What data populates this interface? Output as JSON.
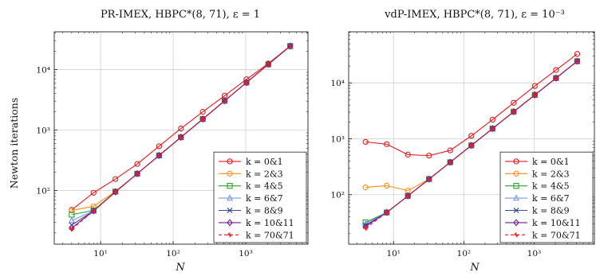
{
  "chart_data": [
    {
      "type": "line",
      "title": "PR-IMEX, HBPC*(8, 71), ε = 1",
      "xlabel": "N",
      "ylabel": "Newton iterations",
      "xscale": "log",
      "yscale": "log",
      "xlim": [
        2.3,
        7200
      ],
      "ylim": [
        13,
        42000
      ],
      "xticks": [
        10,
        100,
        1000
      ],
      "xtick_labels": [
        "10¹",
        "10²",
        "10³"
      ],
      "yticks": [
        100,
        1000,
        10000
      ],
      "ytick_labels": [
        "10²",
        "10³",
        "10⁴"
      ],
      "grid": true,
      "legend_position": "lower-right",
      "x": [
        4,
        8,
        16,
        32,
        64,
        128,
        256,
        512,
        1024,
        2048,
        4096
      ],
      "series": [
        {
          "name": "k = 0&1",
          "color": "#e41a1c",
          "marker": "circle",
          "dashed": false,
          "values": [
            48,
            92,
            155,
            275,
            540,
            1060,
            2000,
            3700,
            6900,
            12600,
            24500
          ]
        },
        {
          "name": "k = 2&3",
          "color": "#ff8c1a",
          "marker": "circle",
          "dashed": false,
          "values": [
            47,
            55,
            97,
            190,
            380,
            760,
            1520,
            3050,
            6100,
            12200,
            24400
          ]
        },
        {
          "name": "k = 4&5",
          "color": "#2ca02c",
          "marker": "square",
          "dashed": false,
          "values": [
            40,
            47,
            96,
            190,
            380,
            760,
            1520,
            3050,
            6100,
            12200,
            24400
          ]
        },
        {
          "name": "k = 6&7",
          "color": "#7b96e8",
          "marker": "triangle",
          "dashed": false,
          "values": [
            32,
            46,
            95,
            190,
            380,
            760,
            1520,
            3050,
            6100,
            12200,
            24400
          ]
        },
        {
          "name": "k = 8&9",
          "color": "#3a4a9a",
          "marker": "x",
          "dashed": false,
          "values": [
            27,
            46,
            95,
            190,
            380,
            760,
            1520,
            3050,
            6100,
            12200,
            24400
          ]
        },
        {
          "name": "k = 10&11",
          "color": "#7a1a9a",
          "marker": "diamond",
          "dashed": false,
          "values": [
            24,
            46,
            95,
            190,
            380,
            760,
            1520,
            3050,
            6100,
            12200,
            24400
          ]
        },
        {
          "name": "k = 70&71",
          "color": "#e41a1c",
          "marker": "star",
          "dashed": true,
          "values": [
            23,
            46,
            95,
            190,
            380,
            760,
            1520,
            3050,
            6100,
            12200,
            24400
          ]
        }
      ]
    },
    {
      "type": "line",
      "title": "vdP-IMEX, HBPC*(8, 71), ε = 10⁻³",
      "xlabel": "N",
      "ylabel": "",
      "xscale": "log",
      "yscale": "log",
      "xlim": [
        2.3,
        7200
      ],
      "ylim": [
        13,
        82000
      ],
      "xticks": [
        10,
        100,
        1000
      ],
      "xtick_labels": [
        "10¹",
        "10²",
        "10³"
      ],
      "yticks": [
        100,
        1000,
        10000
      ],
      "ytick_labels": [
        "10²",
        "10³",
        "10⁴"
      ],
      "grid": true,
      "legend_position": "lower-right",
      "x": [
        4,
        8,
        16,
        32,
        64,
        128,
        256,
        512,
        1024,
        2048,
        4096
      ],
      "series": [
        {
          "name": "k = 0&1",
          "color": "#e41a1c",
          "marker": "circle",
          "dashed": false,
          "values": [
            880,
            800,
            520,
            500,
            620,
            1130,
            2200,
            4400,
            8800,
            17000,
            33000
          ]
        },
        {
          "name": "k = 2&3",
          "color": "#ff8c1a",
          "marker": "circle",
          "dashed": false,
          "values": [
            135,
            145,
            118,
            190,
            380,
            760,
            1520,
            3050,
            6100,
            12200,
            24400
          ]
        },
        {
          "name": "k = 4&5",
          "color": "#2ca02c",
          "marker": "square",
          "dashed": false,
          "values": [
            32,
            48,
            95,
            190,
            380,
            760,
            1520,
            3050,
            6100,
            12200,
            24400
          ]
        },
        {
          "name": "k = 6&7",
          "color": "#7b96e8",
          "marker": "triangle",
          "dashed": false,
          "values": [
            30,
            48,
            95,
            190,
            380,
            760,
            1520,
            3050,
            6100,
            12200,
            24400
          ]
        },
        {
          "name": "k = 8&9",
          "color": "#3a4a9a",
          "marker": "x",
          "dashed": false,
          "values": [
            28,
            48,
            95,
            190,
            380,
            760,
            1520,
            3050,
            6100,
            12200,
            24400
          ]
        },
        {
          "name": "k = 10&11",
          "color": "#7a1a9a",
          "marker": "diamond",
          "dashed": false,
          "values": [
            27,
            48,
            95,
            190,
            380,
            760,
            1520,
            3050,
            6100,
            12200,
            24400
          ]
        },
        {
          "name": "k = 70&71",
          "color": "#e41a1c",
          "marker": "star",
          "dashed": true,
          "values": [
            25,
            48,
            95,
            190,
            380,
            760,
            1520,
            3050,
            6100,
            12200,
            24400
          ]
        }
      ]
    }
  ]
}
